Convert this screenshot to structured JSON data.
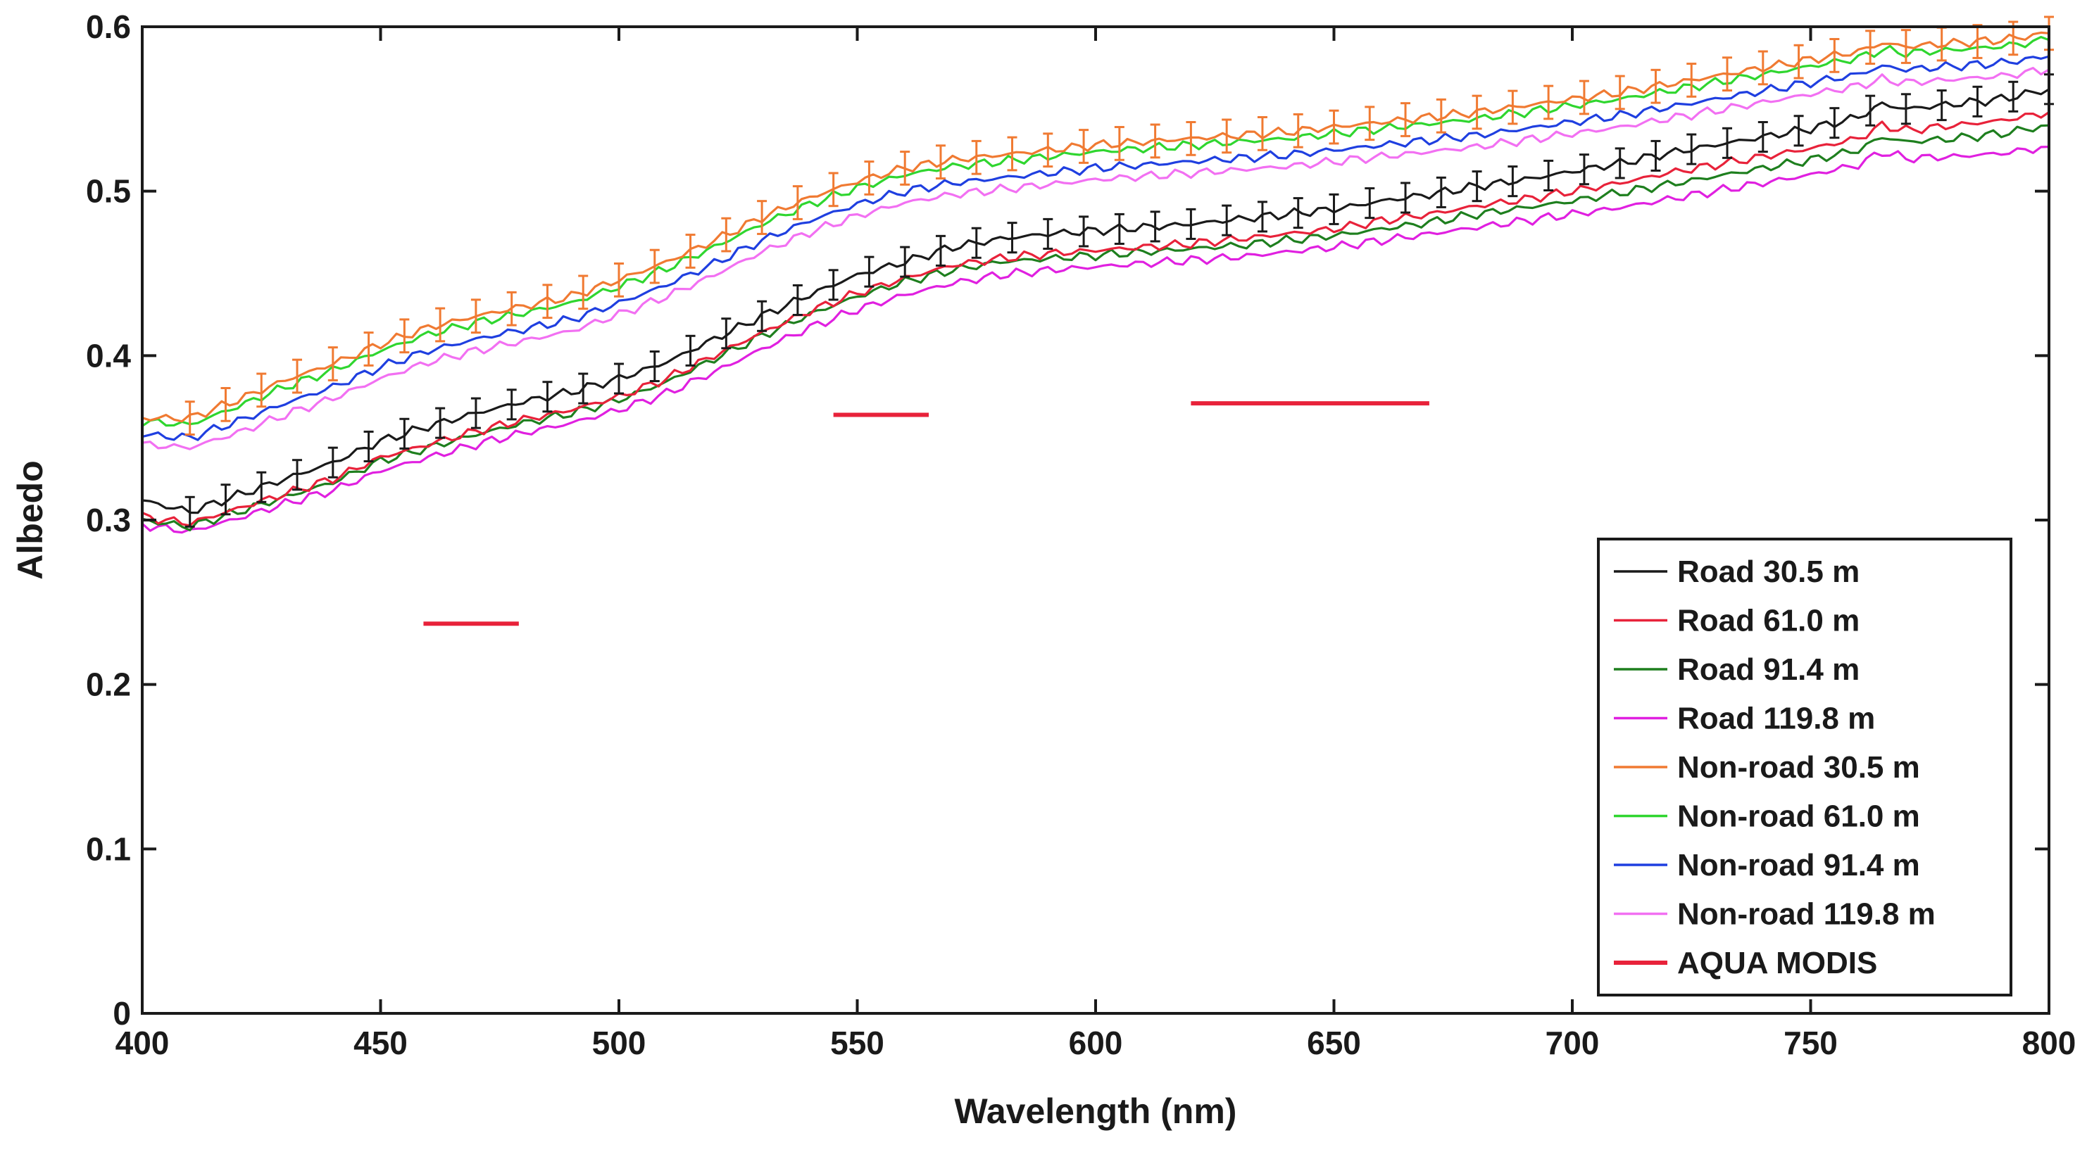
{
  "chart_data": {
    "type": "line",
    "title": "",
    "xlabel": "Wavelength (nm)",
    "ylabel": "Albedo",
    "xlim": [
      400,
      800
    ],
    "ylim": [
      0,
      0.6
    ],
    "xticks": [
      400,
      450,
      500,
      550,
      600,
      650,
      700,
      750,
      800
    ],
    "yticks": [
      0,
      0.1,
      0.2,
      0.3,
      0.4,
      0.5,
      0.6
    ],
    "grid": false,
    "legend_position": "bottom-right",
    "x": [
      400,
      410,
      420,
      430,
      440,
      450,
      460,
      470,
      480,
      490,
      500,
      510,
      520,
      530,
      540,
      550,
      560,
      570,
      580,
      590,
      600,
      610,
      620,
      630,
      640,
      650,
      660,
      670,
      680,
      690,
      700,
      710,
      720,
      730,
      740,
      750,
      760,
      765,
      770,
      780,
      790,
      800
    ],
    "series": [
      {
        "name": "Road 30.5 m",
        "color": "#1a1a1a",
        "error_bars": true,
        "values": [
          0.312,
          0.305,
          0.315,
          0.325,
          0.335,
          0.348,
          0.357,
          0.365,
          0.372,
          0.378,
          0.386,
          0.396,
          0.41,
          0.424,
          0.437,
          0.449,
          0.457,
          0.466,
          0.471,
          0.474,
          0.476,
          0.478,
          0.48,
          0.483,
          0.486,
          0.489,
          0.494,
          0.498,
          0.503,
          0.507,
          0.512,
          0.517,
          0.523,
          0.528,
          0.533,
          0.538,
          0.545,
          0.553,
          0.55,
          0.553,
          0.556,
          0.562
        ]
      },
      {
        "name": "Road 61.0 m",
        "color": "#e8223a",
        "error_bars": false,
        "values": [
          0.302,
          0.298,
          0.307,
          0.316,
          0.325,
          0.338,
          0.346,
          0.354,
          0.361,
          0.367,
          0.375,
          0.386,
          0.4,
          0.414,
          0.427,
          0.438,
          0.447,
          0.455,
          0.459,
          0.462,
          0.464,
          0.466,
          0.468,
          0.471,
          0.474,
          0.477,
          0.482,
          0.486,
          0.491,
          0.495,
          0.5,
          0.505,
          0.511,
          0.516,
          0.521,
          0.526,
          0.532,
          0.54,
          0.537,
          0.54,
          0.543,
          0.548
        ]
      },
      {
        "name": "Road 91.4 m",
        "color": "#1e7f1e",
        "error_bars": false,
        "values": [
          0.3,
          0.296,
          0.305,
          0.314,
          0.323,
          0.336,
          0.344,
          0.352,
          0.359,
          0.365,
          0.373,
          0.384,
          0.398,
          0.412,
          0.425,
          0.436,
          0.445,
          0.452,
          0.457,
          0.459,
          0.461,
          0.463,
          0.465,
          0.467,
          0.47,
          0.473,
          0.477,
          0.481,
          0.486,
          0.49,
          0.494,
          0.499,
          0.504,
          0.509,
          0.514,
          0.519,
          0.525,
          0.533,
          0.53,
          0.532,
          0.535,
          0.54
        ]
      },
      {
        "name": "Road 119.8 m",
        "color": "#e020e0",
        "error_bars": false,
        "values": [
          0.297,
          0.293,
          0.301,
          0.31,
          0.318,
          0.33,
          0.338,
          0.346,
          0.353,
          0.359,
          0.367,
          0.377,
          0.39,
          0.404,
          0.417,
          0.428,
          0.437,
          0.444,
          0.449,
          0.452,
          0.454,
          0.456,
          0.458,
          0.46,
          0.463,
          0.466,
          0.47,
          0.474,
          0.478,
          0.482,
          0.486,
          0.49,
          0.495,
          0.5,
          0.505,
          0.51,
          0.516,
          0.524,
          0.52,
          0.521,
          0.523,
          0.527
        ]
      },
      {
        "name": "Non-road 30.5 m",
        "color": "#f07a32",
        "error_bars": true,
        "values": [
          0.362,
          0.362,
          0.373,
          0.385,
          0.395,
          0.407,
          0.417,
          0.424,
          0.43,
          0.436,
          0.446,
          0.457,
          0.47,
          0.484,
          0.496,
          0.506,
          0.514,
          0.519,
          0.522,
          0.525,
          0.528,
          0.53,
          0.532,
          0.534,
          0.536,
          0.539,
          0.542,
          0.545,
          0.548,
          0.552,
          0.556,
          0.56,
          0.565,
          0.57,
          0.575,
          0.58,
          0.585,
          0.59,
          0.588,
          0.59,
          0.592,
          0.596
        ]
      },
      {
        "name": "Non-road 61.0 m",
        "color": "#2fd62f",
        "error_bars": false,
        "values": [
          0.36,
          0.358,
          0.369,
          0.381,
          0.391,
          0.403,
          0.413,
          0.42,
          0.426,
          0.432,
          0.442,
          0.453,
          0.466,
          0.48,
          0.492,
          0.502,
          0.51,
          0.515,
          0.518,
          0.521,
          0.524,
          0.526,
          0.528,
          0.53,
          0.532,
          0.535,
          0.538,
          0.541,
          0.544,
          0.548,
          0.552,
          0.556,
          0.561,
          0.566,
          0.571,
          0.576,
          0.581,
          0.586,
          0.584,
          0.586,
          0.588,
          0.592
        ]
      },
      {
        "name": "Non-road 91.4 m",
        "color": "#1f3fe0",
        "error_bars": false,
        "values": [
          0.352,
          0.35,
          0.36,
          0.371,
          0.381,
          0.393,
          0.403,
          0.41,
          0.416,
          0.422,
          0.432,
          0.443,
          0.456,
          0.47,
          0.482,
          0.492,
          0.5,
          0.505,
          0.508,
          0.511,
          0.514,
          0.516,
          0.518,
          0.52,
          0.522,
          0.525,
          0.528,
          0.531,
          0.534,
          0.538,
          0.542,
          0.546,
          0.551,
          0.556,
          0.561,
          0.566,
          0.571,
          0.576,
          0.574,
          0.576,
          0.578,
          0.582
        ]
      },
      {
        "name": "Non-road 119.8 m",
        "color": "#f270f2",
        "error_bars": false,
        "values": [
          0.346,
          0.344,
          0.353,
          0.364,
          0.374,
          0.386,
          0.396,
          0.403,
          0.409,
          0.415,
          0.425,
          0.436,
          0.449,
          0.463,
          0.475,
          0.485,
          0.493,
          0.498,
          0.501,
          0.504,
          0.507,
          0.509,
          0.511,
          0.513,
          0.515,
          0.518,
          0.521,
          0.524,
          0.527,
          0.531,
          0.535,
          0.539,
          0.544,
          0.549,
          0.554,
          0.559,
          0.564,
          0.568,
          0.566,
          0.568,
          0.57,
          0.574
        ]
      }
    ],
    "aqua_modis": {
      "name": "AQUA MODIS",
      "color": "#e8223a",
      "bands": [
        {
          "x_start": 459,
          "x_end": 479,
          "value": 0.237
        },
        {
          "x_start": 545,
          "x_end": 565,
          "value": 0.364
        },
        {
          "x_start": 620,
          "x_end": 670,
          "value": 0.371
        }
      ]
    },
    "legend": [
      "Road 30.5 m",
      "Road 61.0 m",
      "Road 91.4 m",
      "Road 119.8 m",
      "Non-road 30.5 m",
      "Non-road 61.0 m",
      "Non-road 91.4 m",
      "Non-road 119.8 m",
      "AQUA MODIS"
    ]
  }
}
